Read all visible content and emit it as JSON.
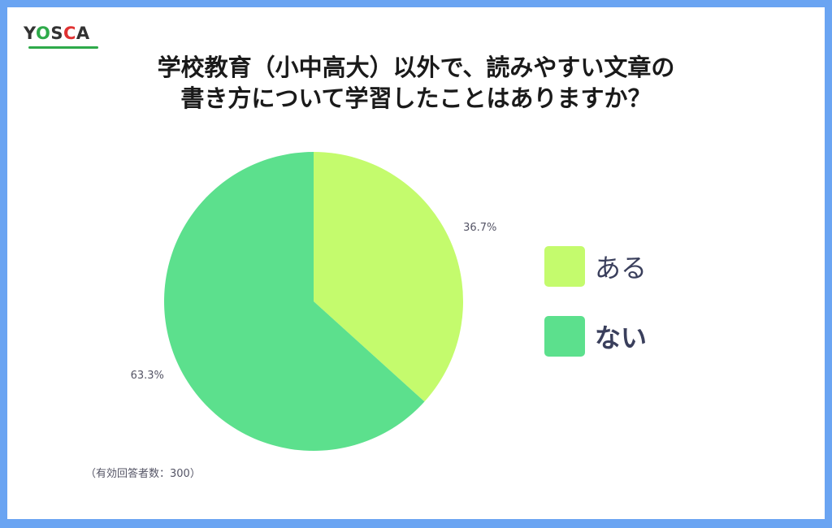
{
  "logo": {
    "text_y": "Y",
    "text_o": "O",
    "text_s": "S",
    "text_c": "C",
    "text_a": "A"
  },
  "title": {
    "line1": "学校教育（小中高大）以外で、読みやすい文章の",
    "line2": "書き方について学習したことはありますか？"
  },
  "footnote": "（有効回答者数：300）",
  "colors": {
    "background": "#6aa4f2",
    "aru": "#c4fb6d",
    "nai": "#5ce08d"
  },
  "chart_data": {
    "type": "pie",
    "categories": [
      "ある",
      "ない"
    ],
    "values": [
      36.7,
      63.3
    ],
    "labels": [
      "36.7%",
      "63.3%"
    ],
    "colors": [
      "#c4fb6d",
      "#5ce08d"
    ],
    "legend_placement": "right"
  }
}
